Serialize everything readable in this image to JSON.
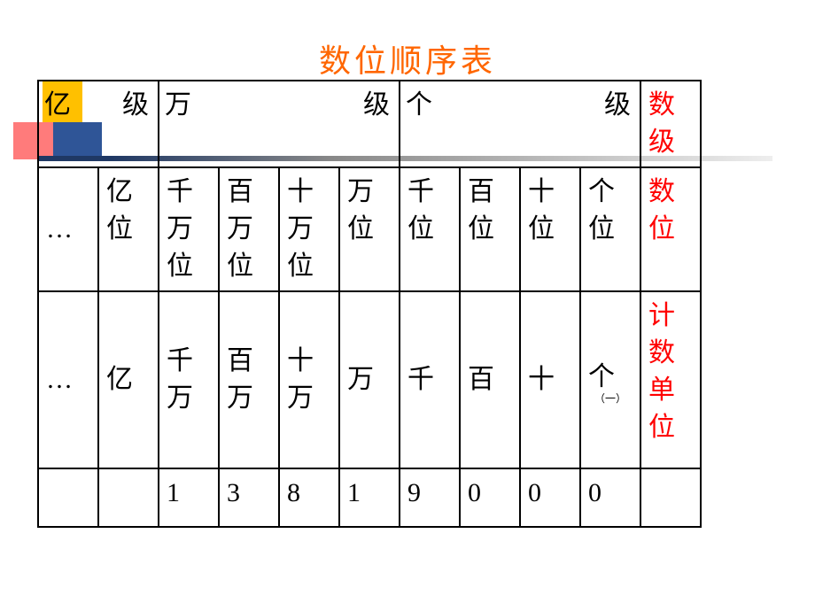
{
  "title": "数位顺序表",
  "colors": {
    "title": "#ff6600",
    "row_label": "#ff0000",
    "border": "#000000",
    "deco_yellow": "#ffc000",
    "deco_blue": "#2f5597",
    "deco_red": "#ff7b7b"
  },
  "grid": {
    "level_row": {
      "cells": [
        {
          "first": "亿",
          "last": "级",
          "span": 2
        },
        {
          "first": "万",
          "last": "级",
          "span": 4
        },
        {
          "first": "个",
          "last": "级",
          "span": 4
        }
      ],
      "label": "数级"
    },
    "place_row": {
      "cells": [
        "…",
        "亿位",
        "千万位",
        "百万位",
        "十万位",
        "万位",
        "千位",
        "百位",
        "十位",
        "个位"
      ],
      "label": "数位"
    },
    "unit_row": {
      "cells": [
        "…",
        "亿",
        "千万",
        "百万",
        "十万",
        "万",
        "千",
        "百",
        "十",
        "个"
      ],
      "sub_last": "（一）",
      "label": "计数单位"
    },
    "value_row": {
      "cells": [
        "",
        "",
        "1",
        "3",
        "8",
        "1",
        "9",
        "0",
        "0",
        "0"
      ],
      "label": ""
    }
  },
  "font": {
    "title_size": 36,
    "cell_size": 30
  }
}
